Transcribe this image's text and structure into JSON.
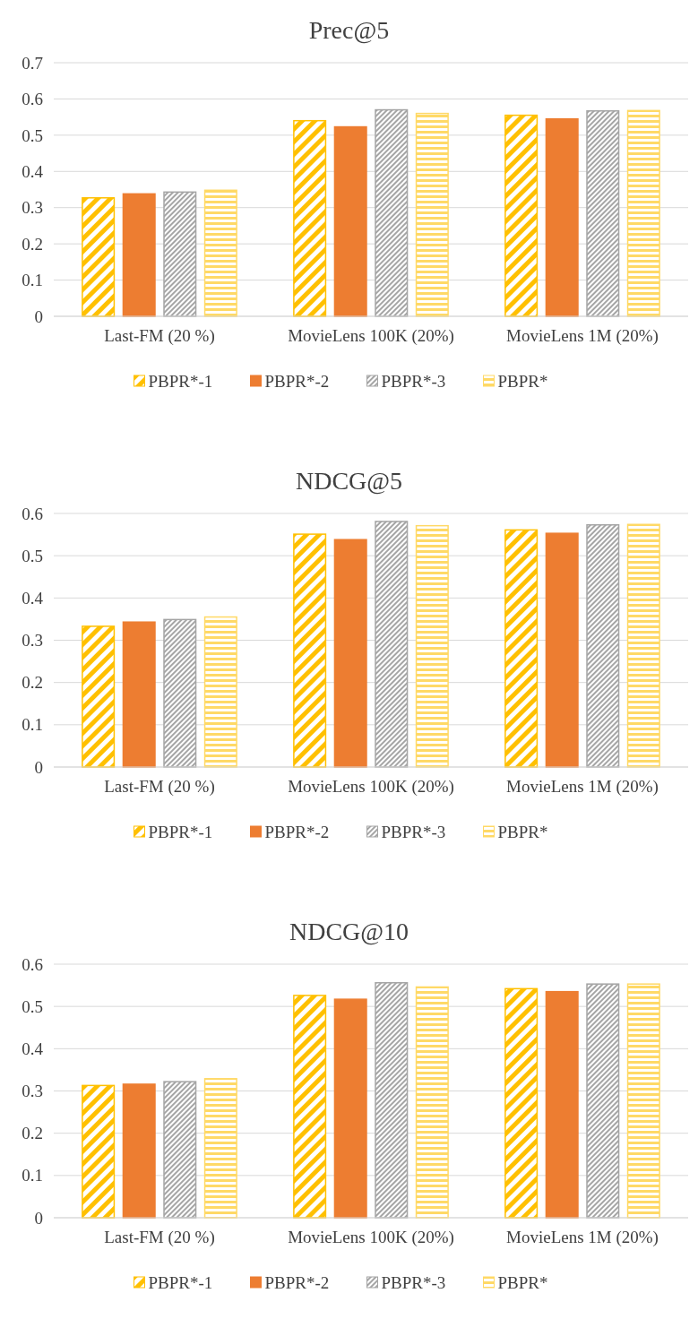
{
  "chart_data": [
    {
      "type": "bar",
      "title": "Prec@5",
      "categories": [
        "Last-FM (20 %)",
        "MovieLens 100K (20%)",
        "MovieLens 1M (20%)"
      ],
      "ylim": [
        0,
        0.7
      ],
      "yticks": [
        0,
        0.1,
        0.2,
        0.3,
        0.4,
        0.5,
        0.6,
        0.7
      ],
      "grid": "y",
      "legend": "bottom",
      "series": [
        {
          "name": "PBPR*-1",
          "color": "#ffc000",
          "values": [
            0.327,
            0.54,
            0.555
          ]
        },
        {
          "name": "PBPR*-2",
          "color": "#ed7d31",
          "values": [
            0.338,
            0.523,
            0.545
          ]
        },
        {
          "name": "PBPR*-3",
          "color": "#a5a5a5",
          "values": [
            0.343,
            0.57,
            0.567
          ]
        },
        {
          "name": "PBPR*",
          "color": "#ffd966",
          "values": [
            0.348,
            0.56,
            0.568
          ]
        }
      ]
    },
    {
      "type": "bar",
      "title": "NDCG@5",
      "categories": [
        "Last-FM (20 %)",
        "MovieLens 100K (20%)",
        "MovieLens 1M (20%)"
      ],
      "ylim": [
        0,
        0.6
      ],
      "yticks": [
        0,
        0.1,
        0.2,
        0.3,
        0.4,
        0.5,
        0.6
      ],
      "grid": "y",
      "legend": "bottom",
      "series": [
        {
          "name": "PBPR*-1",
          "color": "#ffc000",
          "values": [
            0.333,
            0.551,
            0.561
          ]
        },
        {
          "name": "PBPR*-2",
          "color": "#ed7d31",
          "values": [
            0.343,
            0.538,
            0.553
          ]
        },
        {
          "name": "PBPR*-3",
          "color": "#a5a5a5",
          "values": [
            0.349,
            0.581,
            0.573
          ]
        },
        {
          "name": "PBPR*",
          "color": "#ffd966",
          "values": [
            0.355,
            0.571,
            0.574
          ]
        }
      ]
    },
    {
      "type": "bar",
      "title": "NDCG@10",
      "categories": [
        "Last-FM (20 %)",
        "MovieLens 100K (20%)",
        "MovieLens 1M (20%)"
      ],
      "ylim": [
        0,
        0.6
      ],
      "yticks": [
        0,
        0.1,
        0.2,
        0.3,
        0.4,
        0.5,
        0.6
      ],
      "grid": "y",
      "legend": "bottom",
      "series": [
        {
          "name": "PBPR*-1",
          "color": "#ffc000",
          "values": [
            0.313,
            0.526,
            0.542
          ]
        },
        {
          "name": "PBPR*-2",
          "color": "#ed7d31",
          "values": [
            0.316,
            0.517,
            0.535
          ]
        },
        {
          "name": "PBPR*-3",
          "color": "#a5a5a5",
          "values": [
            0.322,
            0.556,
            0.553
          ]
        },
        {
          "name": "PBPR*",
          "color": "#ffd966",
          "values": [
            0.329,
            0.546,
            0.553
          ]
        }
      ]
    }
  ]
}
